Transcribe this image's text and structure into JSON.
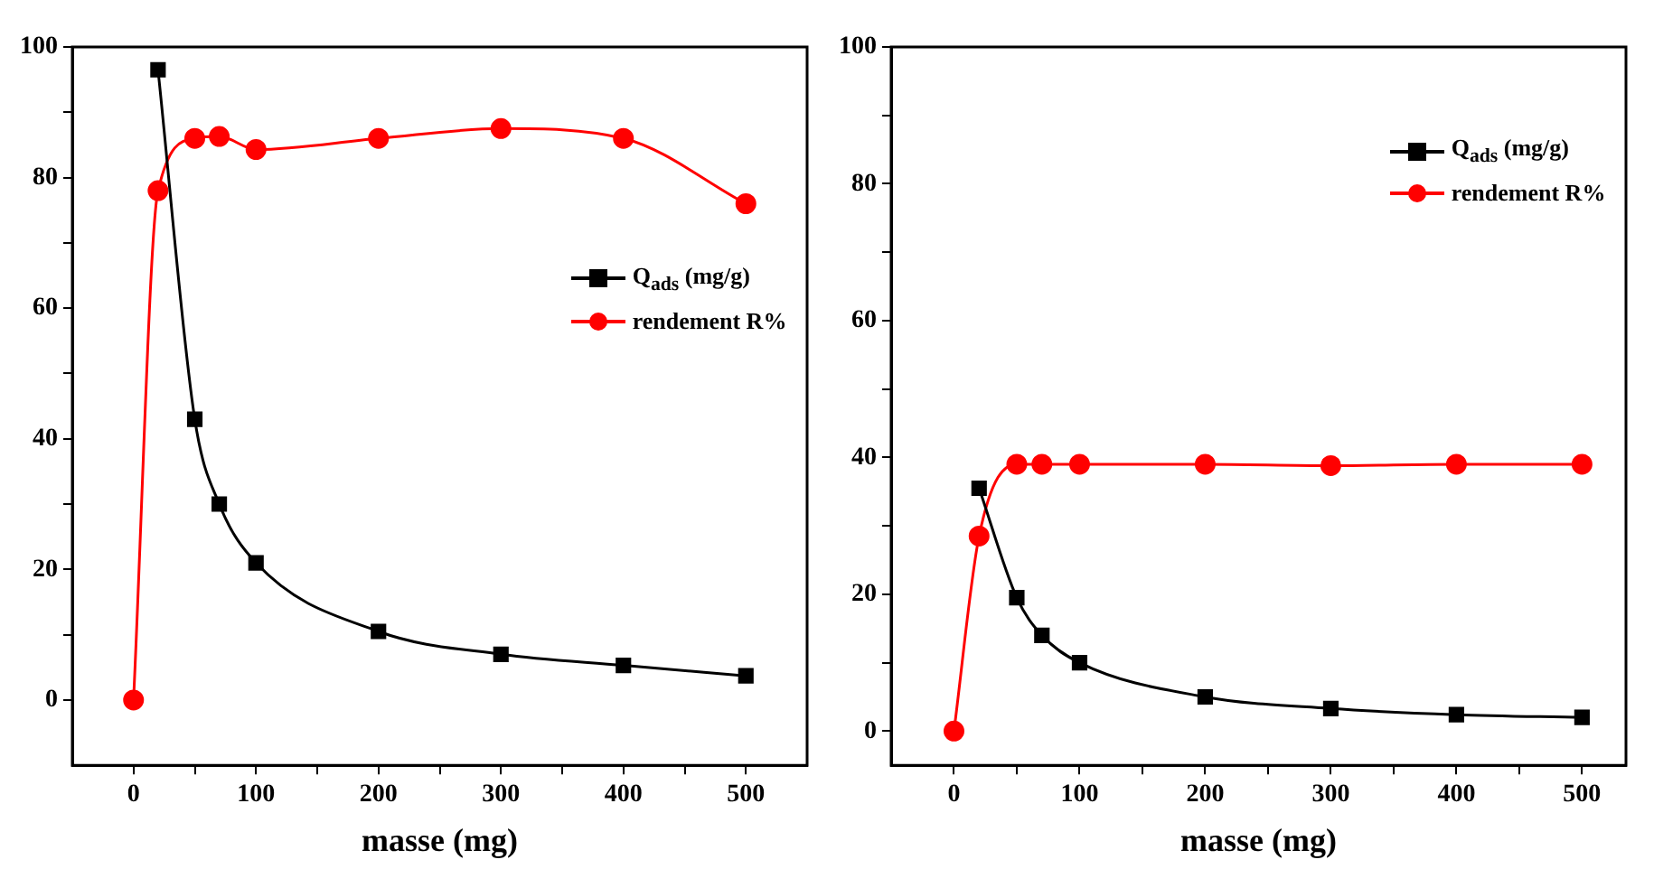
{
  "chart_data": [
    {
      "type": "line",
      "xlabel": "masse (mg)",
      "xlim": [
        -50,
        550
      ],
      "ylim": [
        -10,
        100
      ],
      "xticks": [
        0,
        {
          "value": 50,
          "label": null
        },
        100,
        {
          "value": 150,
          "label": null
        },
        200,
        {
          "value": 250,
          "label": null
        },
        300,
        {
          "value": 350,
          "label": null
        },
        400,
        {
          "value": 450,
          "label": null
        },
        500
      ],
      "yticks": [
        0,
        {
          "value": 10,
          "label": null
        },
        20,
        {
          "value": 30,
          "label": null
        },
        40,
        {
          "value": 50,
          "label": null
        },
        60,
        {
          "value": 70,
          "label": null
        },
        80,
        {
          "value": 90,
          "label": null
        },
        100
      ],
      "grid": false,
      "legend": "right",
      "line_style": "solid",
      "series": [
        {
          "name": "Q$_{ads}$ (mg/g)",
          "color": "#000000",
          "marker": "square",
          "x": [
            20,
            50,
            70,
            100,
            200,
            300,
            400,
            500
          ],
          "values": [
            96.5,
            43,
            30,
            21,
            10.5,
            7,
            5.3,
            3.7
          ]
        },
        {
          "name": "rendement R%",
          "color": "#ff0000",
          "marker": "circle",
          "x": [
            0,
            20,
            50,
            70,
            100,
            200,
            300,
            400,
            500
          ],
          "values": [
            0,
            78,
            86,
            86.3,
            84.3,
            86,
            87.5,
            86,
            76
          ]
        }
      ]
    },
    {
      "type": "line",
      "xlabel": "masse (mg)",
      "xlim": [
        -50,
        535
      ],
      "ylim": [
        -5,
        100
      ],
      "xticks": [
        0,
        {
          "value": 50,
          "label": null
        },
        100,
        {
          "value": 150,
          "label": null
        },
        200,
        {
          "value": 250,
          "label": null
        },
        300,
        {
          "value": 350,
          "label": null
        },
        400,
        {
          "value": 450,
          "label": null
        },
        500
      ],
      "yticks": [
        0,
        {
          "value": 10,
          "label": null
        },
        20,
        {
          "value": 30,
          "label": null
        },
        40,
        {
          "value": 50,
          "label": null
        },
        60,
        {
          "value": 70,
          "label": null
        },
        80,
        {
          "value": 90,
          "label": null
        },
        100
      ],
      "grid": false,
      "legend": "top right",
      "line_style": "solid",
      "series": [
        {
          "name": "Q$_{ads}$ (mg/g)",
          "color": "#000000",
          "marker": "square",
          "x": [
            20,
            50,
            70,
            100,
            200,
            300,
            400,
            500
          ],
          "values": [
            35.5,
            19.5,
            14,
            10,
            5,
            3.3,
            2.4,
            2
          ]
        },
        {
          "name": "rendement R%",
          "color": "#ff0000",
          "marker": "circle",
          "x": [
            0,
            20,
            50,
            70,
            100,
            200,
            300,
            400,
            500
          ],
          "values": [
            0,
            28.5,
            39,
            39,
            39,
            39,
            38.8,
            39,
            39
          ]
        }
      ]
    }
  ]
}
